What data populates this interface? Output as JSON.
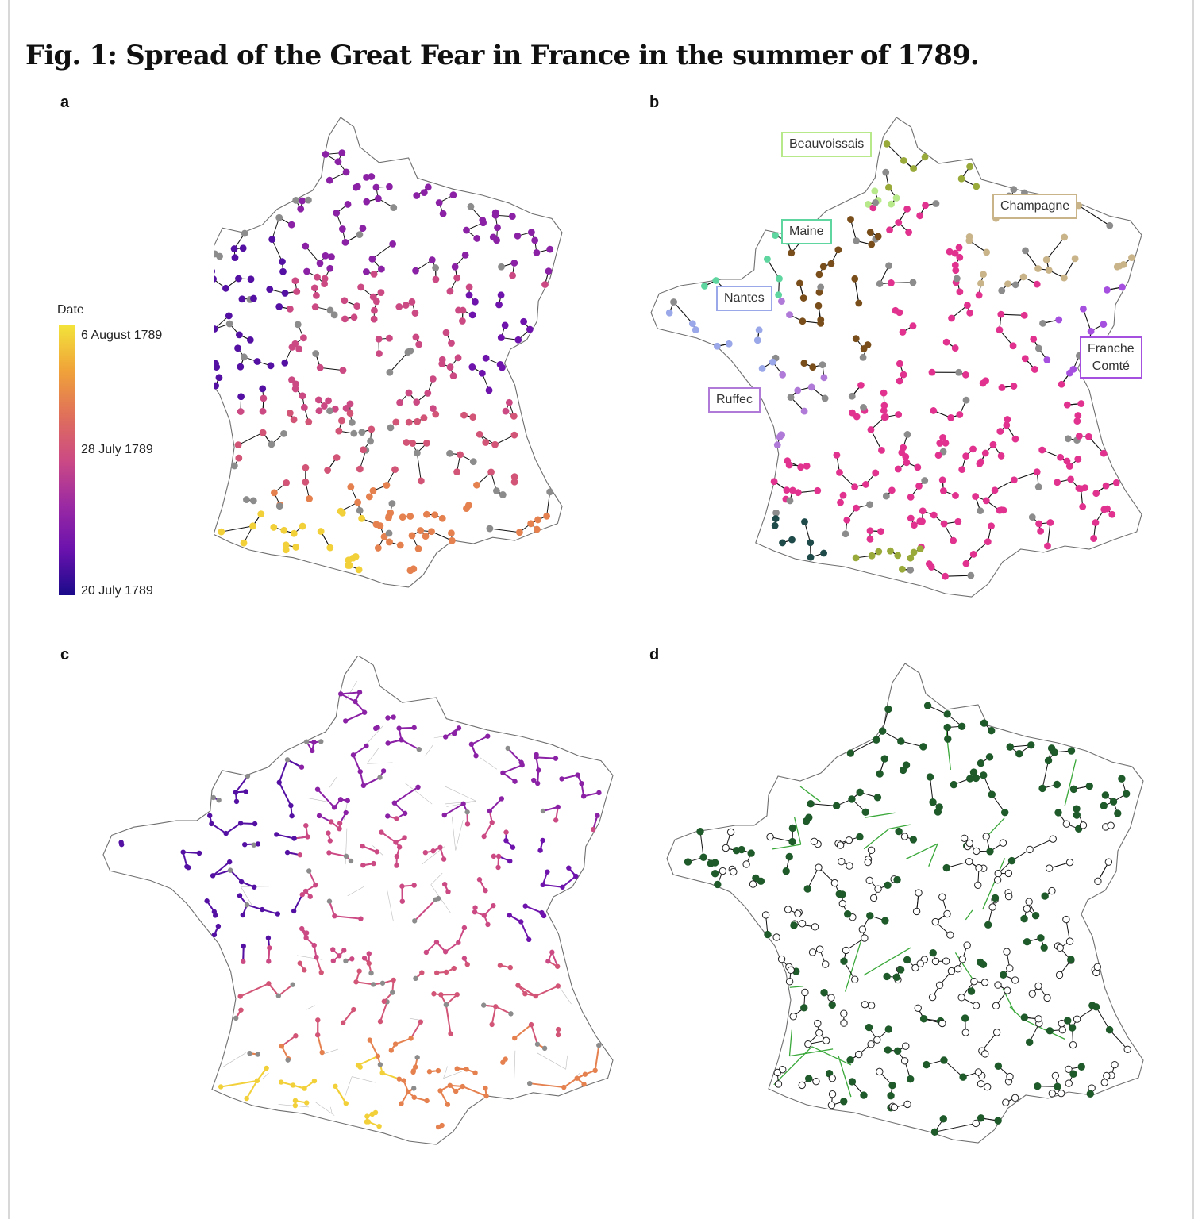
{
  "figure": {
    "title": "Fig. 1: Spread of the Great Fear in France in the summer of 1789."
  },
  "panels": {
    "a": {
      "letter": "a"
    },
    "b": {
      "letter": "b"
    },
    "c": {
      "letter": "c"
    },
    "d": {
      "letter": "d"
    }
  },
  "legend": {
    "title": "Date",
    "ticks": [
      "6 August 1789",
      "28 July 1789",
      "20 July 1789"
    ],
    "gradient": [
      "#f3e33a",
      "#f0a339",
      "#e0705a",
      "#cc4a84",
      "#9b2aa3",
      "#6a12ad",
      "#1a0a8a"
    ]
  },
  "regions": [
    {
      "name": "Beauvoissais",
      "color": "#b7e88a"
    },
    {
      "name": "Champagne",
      "color": "#c9b48a"
    },
    {
      "name": "Maine",
      "color": "#5fd6a0"
    },
    {
      "name": "Nantes",
      "color": "#9aa7e8"
    },
    {
      "name": "Franche\nComté",
      "color": "#a650e0"
    },
    {
      "name": "Ruffec",
      "color": "#b07ad8"
    }
  ],
  "colors": {
    "border": "#6f6f6f",
    "arrow": "#111111",
    "grey_node": "#8c8c8c",
    "road_network": "#bdbdbd",
    "green_network": "#3aa83a",
    "dark_green_node": "#1f5a2a",
    "open_node_fill": "#ffffff"
  }
}
